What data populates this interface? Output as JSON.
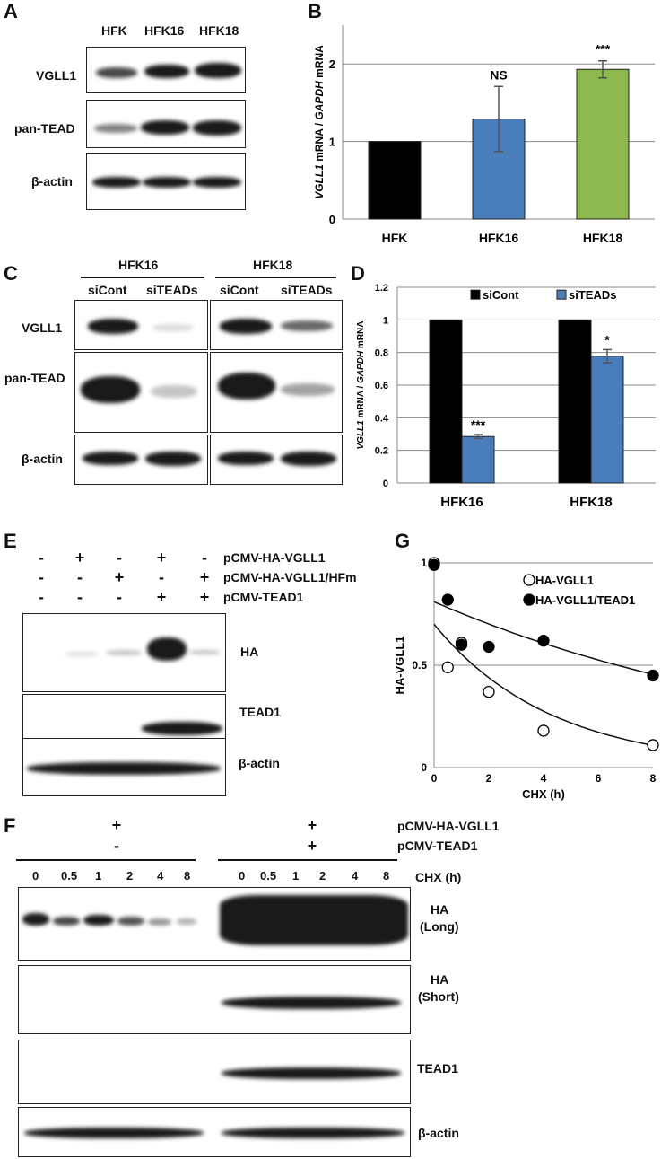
{
  "panel_letters": {
    "a": "A",
    "b": "B",
    "c": "C",
    "d": "D",
    "e": "E",
    "f": "F",
    "g": "G"
  },
  "panel_a": {
    "lanes": [
      "HFK",
      "HFK16",
      "HFK18"
    ],
    "rows": [
      "VGLL1",
      "pan-TEAD",
      "β-actin"
    ]
  },
  "panel_c": {
    "groups": [
      "HFK16",
      "HFK18"
    ],
    "lanes": [
      "siCont",
      "siTEADs",
      "siCont",
      "siTEADs"
    ],
    "rows": [
      "VGLL1",
      "pan-TEAD",
      "β-actin"
    ]
  },
  "panel_e": {
    "row_labels": [
      "pCMV-HA-VGLL1",
      "pCMV-HA-VGLL1/HFm",
      "pCMV-TEAD1"
    ],
    "signs": [
      [
        "-",
        "+",
        "-",
        "+",
        "-"
      ],
      [
        "-",
        "-",
        "+",
        "-",
        "+"
      ],
      [
        "-",
        "-",
        "-",
        "+",
        "+"
      ]
    ],
    "blots": [
      "HA",
      "TEAD1",
      "β-actin"
    ]
  },
  "panel_f": {
    "left_signs": [
      "+",
      "-"
    ],
    "right_signs": [
      "+",
      "+"
    ],
    "row_labels": [
      "pCMV-HA-VGLL1",
      "pCMV-TEAD1"
    ],
    "timepoints": [
      "0",
      "0.5",
      "1",
      "2",
      "4",
      "8"
    ],
    "timepoint_label": "CHX (h)",
    "blots": [
      {
        "line1": "HA",
        "line2": "(Long)"
      },
      {
        "line1": "HA",
        "line2": "(Short)"
      },
      {
        "line1": "TEAD1",
        "line2": ""
      },
      {
        "line1": "β-actin",
        "line2": ""
      }
    ]
  },
  "chart_data": [
    {
      "panel": "B",
      "type": "bar",
      "categories": [
        "HFK",
        "HFK16",
        "HFK18"
      ],
      "values": [
        1.0,
        1.29,
        1.93
      ],
      "errors": [
        0,
        0.42,
        0.11
      ],
      "colors": [
        "#000000",
        "#4a7ebb",
        "#8cb84e"
      ],
      "annotations": [
        "",
        "NS",
        "***"
      ],
      "ylabel_parts": [
        {
          "text": "VGLL1",
          "italic": true
        },
        {
          "text": " mRNA / ",
          "italic": false
        },
        {
          "text": "GAPDH",
          "italic": true
        },
        {
          "text": " mRNA",
          "italic": false
        }
      ],
      "ylim": [
        0,
        2.5
      ],
      "yticks": [
        "0",
        "1",
        "2"
      ],
      "grid": true
    },
    {
      "panel": "D",
      "type": "bar",
      "categories": [
        "HFK16",
        "HFK18"
      ],
      "series": [
        {
          "name": "siCont",
          "values": [
            1.0,
            1.0
          ],
          "errors": [
            0,
            0
          ],
          "color": "#000000"
        },
        {
          "name": "siTEADs",
          "values": [
            0.285,
            0.778
          ],
          "errors": [
            0.012,
            0.04
          ],
          "color": "#4a7ebb"
        }
      ],
      "annotations": [
        "***",
        "*"
      ],
      "ylabel_parts": [
        {
          "text": "VGLL1",
          "italic": true
        },
        {
          "text": " mRNA / ",
          "italic": false
        },
        {
          "text": "GAPDH",
          "italic": true
        },
        {
          "text": " mRNA",
          "italic": false
        }
      ],
      "ylim": [
        0,
        1.2
      ],
      "yticks": [
        "0",
        "0.2",
        "0.4",
        "0.6",
        "0.8",
        "1",
        "1.2"
      ],
      "legend": "top",
      "grid": true
    },
    {
      "panel": "G",
      "type": "scatter",
      "series": [
        {
          "name": "HA-VGLL1",
          "marker": "open",
          "x": [
            0,
            0.5,
            1,
            2,
            4,
            8
          ],
          "y": [
            1.0,
            0.49,
            0.61,
            0.37,
            0.18,
            0.11
          ],
          "fit": {
            "a": 0.7,
            "k": 0.233
          }
        },
        {
          "name": "HA-VGLL1/TEAD1",
          "marker": "filled",
          "x": [
            0,
            0.5,
            1,
            2,
            4,
            8
          ],
          "y": [
            0.99,
            0.82,
            0.6,
            0.59,
            0.62,
            0.45
          ],
          "fit": {
            "a": 0.81,
            "k": 0.072
          }
        }
      ],
      "xlabel": "CHX (h)",
      "ylabel": "HA-VGLL1",
      "xlim": [
        0,
        8
      ],
      "ylim": [
        0,
        1
      ],
      "xticks": [
        "0",
        "2",
        "4",
        "6",
        "8"
      ],
      "yticks": [
        "0",
        "0.5",
        "1"
      ],
      "legend": "top-right",
      "grid": true
    }
  ]
}
